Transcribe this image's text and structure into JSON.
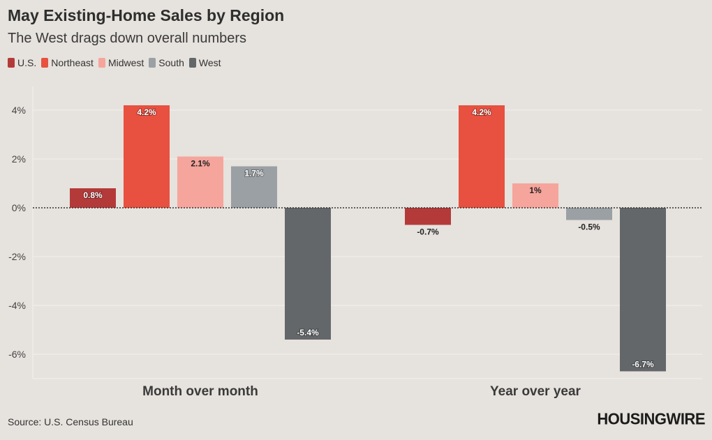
{
  "chart_data": {
    "type": "bar",
    "title": "May Existing-Home Sales by Region",
    "subtitle": "The West drags down overall numbers",
    "categories": [
      "Month over month",
      "Year over year"
    ],
    "series": [
      {
        "name": "U.S.",
        "color": "#b43a39",
        "values": [
          0.8,
          -0.7
        ],
        "labels": [
          "0.8%",
          "-0.7%"
        ]
      },
      {
        "name": "Northeast",
        "color": "#e8503f",
        "values": [
          4.2,
          4.2
        ],
        "labels": [
          "4.2%",
          "4.2%"
        ]
      },
      {
        "name": "Midwest",
        "color": "#f6a59c",
        "values": [
          2.1,
          1.0
        ],
        "labels": [
          "2.1%",
          "1%"
        ]
      },
      {
        "name": "South",
        "color": "#9aa0a3",
        "values": [
          1.7,
          -0.5
        ],
        "labels": [
          "1.7%",
          "-0.5%"
        ]
      },
      {
        "name": "West",
        "color": "#63676a",
        "values": [
          -5.4,
          -6.7
        ],
        "labels": [
          "-5.4%",
          "-6.7%"
        ]
      }
    ],
    "yticks": [
      4,
      2,
      0,
      -2,
      -4,
      -6
    ],
    "ytick_labels": [
      "4%",
      "2%",
      "0%",
      "-2%",
      "-4%",
      "-6%"
    ],
    "ylim": [
      -7.1,
      5.0
    ],
    "xlabel": "",
    "ylabel": ""
  },
  "source": "Source: U.S. Census Bureau",
  "logo": "HOUSINGWIRE"
}
